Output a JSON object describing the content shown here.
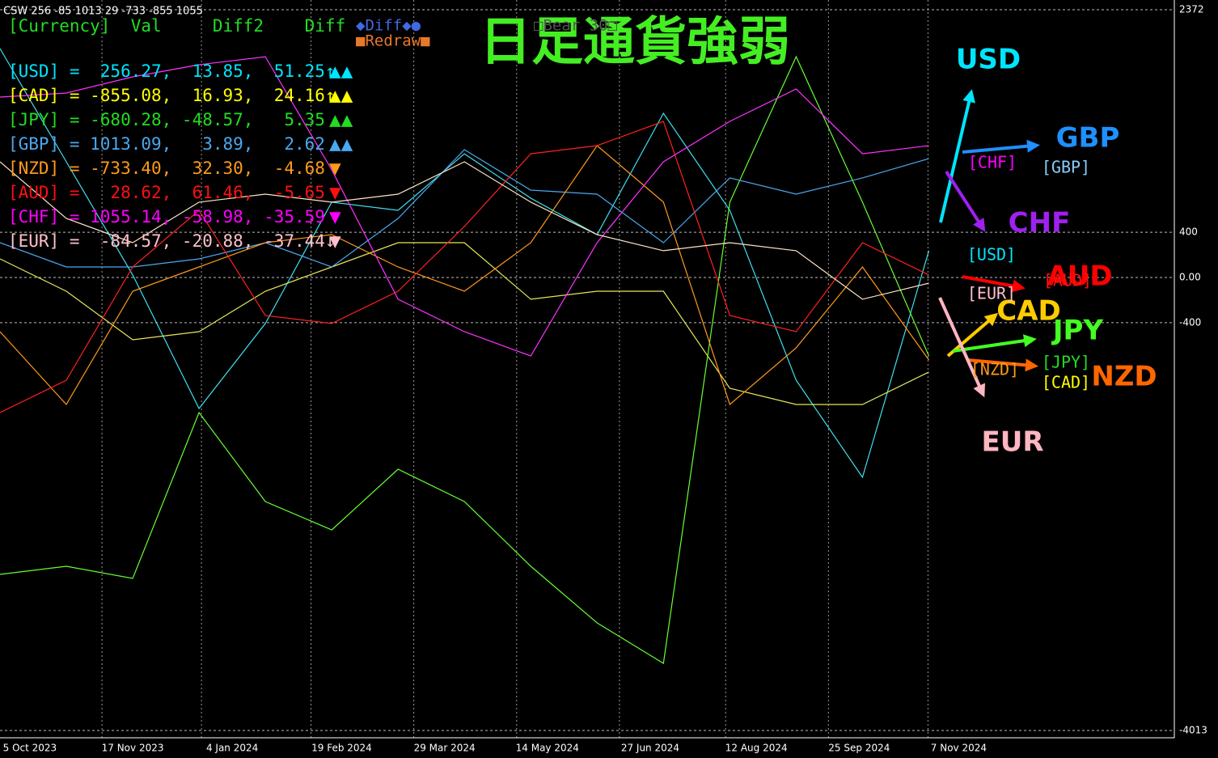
{
  "chart_data": {
    "type": "line",
    "caption": "CSW 256 -85 1013 29 -733 -855 1055",
    "title": "日足通貨強弱",
    "x": [
      0,
      20,
      40,
      60,
      80,
      100,
      120,
      140,
      160,
      180,
      200,
      220,
      240,
      260,
      280
    ],
    "xlim": [
      0,
      354
    ],
    "xticks": [
      {
        "value": 9,
        "label": "5 Oct 2023"
      },
      {
        "value": 40,
        "label": "17 Nov 2023"
      },
      {
        "value": 70,
        "label": "4 Jan 2024"
      },
      {
        "value": 103,
        "label": "19 Feb 2024"
      },
      {
        "value": 134,
        "label": "29 Mar 2024"
      },
      {
        "value": 165,
        "label": "14 May 2024"
      },
      {
        "value": 196,
        "label": "27 Jun 2024"
      },
      {
        "value": 228,
        "label": "12 Aug 2024"
      },
      {
        "value": 259,
        "label": "25 Sep 2024"
      },
      {
        "value": 289,
        "label": "7 Nov 2024"
      }
    ],
    "ylim": [
      -4013,
      2372
    ],
    "yticks": [
      -4013,
      -400,
      {
        "value": 0,
        "label": "0.00"
      },
      400,
      2372
    ],
    "grid": true,
    "series": [
      {
        "name": "USD",
        "color": "#3fe0f0",
        "values": [
          2028,
          1025,
          22,
          -1161,
          -408,
          667,
          595,
          1096,
          702,
          380,
          1455,
          595,
          -910,
          -1770,
          237
        ]
      },
      {
        "name": "CAD",
        "color": "#e6e65a",
        "values": [
          165,
          -122,
          -552,
          -480,
          -122,
          93,
          308,
          308,
          -193,
          -122,
          -122,
          -982,
          -1125,
          -1125,
          -838
        ]
      },
      {
        "name": "JPY",
        "color": "#66ff33",
        "values": [
          -2630,
          -2558,
          -2666,
          -1197,
          -1985,
          -2236,
          -1698,
          -1985,
          -2558,
          -3060,
          -3418,
          667,
          1956,
          667,
          -695
        ]
      },
      {
        "name": "GBP",
        "color": "#4aa8f0",
        "values": [
          308,
          93,
          93,
          165,
          308,
          93,
          523,
          1132,
          774,
          738,
          308,
          882,
          738,
          882,
          1053
        ]
      },
      {
        "name": "NZD",
        "color": "#ff9a1a",
        "values": [
          -480,
          -1125,
          -122,
          93,
          308,
          380,
          93,
          -122,
          308,
          1168,
          667,
          -1125,
          -623,
          93,
          -731
        ]
      },
      {
        "name": "AUD",
        "color": "#ff2020",
        "values": [
          -1197,
          -910,
          93,
          595,
          -337,
          -408,
          -122,
          452,
          1096,
          1168,
          1383,
          -337,
          -480,
          308,
          22
        ]
      },
      {
        "name": "CHF",
        "color": "#ff33ff",
        "values": [
          1598,
          1634,
          1777,
          1885,
          1956,
          953,
          -193,
          -480,
          -695,
          308,
          1025,
          1383,
          1670,
          1096,
          1168
        ]
      },
      {
        "name": "EUR",
        "color": "#ffe4c4",
        "values": [
          1025,
          523,
          308,
          667,
          738,
          667,
          738,
          1025,
          667,
          380,
          237,
          308,
          237,
          -193,
          -50
        ]
      }
    ],
    "panel": {
      "header": "[Currency]  Val     Diff2    Diff",
      "header_color": "#22dd22",
      "buttons": [
        {
          "text": "◆Diff◆●",
          "color": "#4169e1"
        },
        {
          "text": "■Redraw■",
          "color": "#e8782a"
        },
        {
          "text": "□Bear 30□",
          "color": "#555555"
        }
      ],
      "rows": [
        {
          "text": "[USD] =  256.27,  13.85,  51.25↑",
          "marks": "▲▲",
          "color": "#00e5ff"
        },
        {
          "text": "[CAD] = -855.08,  16.93,  24.16↑",
          "marks": "▲▲",
          "color": "#ffff00"
        },
        {
          "text": "[JPY] = -680.28, -48.57,   5.35",
          "marks": "▲▲",
          "color": "#22dd22"
        },
        {
          "text": "[GBP] = 1013.09,   3.89,   2.62",
          "marks": "▲▲",
          "color": "#4aa8f0"
        },
        {
          "text": "[NZD] = -733.40,  32.30,  -4.68",
          "marks": "▼",
          "color": "#ff9a1a"
        },
        {
          "text": "[AUD] =   28.62,  61.46,  -5.65",
          "marks": "▼",
          "color": "#ff1010"
        },
        {
          "text": "[CHF] = 1055.14, -58.98, -35.59",
          "marks": "▼",
          "color": "#ff00ff"
        },
        {
          "text": "[EUR] =  -84.57, -20.88, -37.44↓",
          "marks": "▼",
          "color": "#ffc0cb"
        }
      ]
    },
    "strength_labels": [
      {
        "text": "USD",
        "color": "#00e5ff"
      },
      {
        "text": "GBP",
        "color": "#1e90ff"
      },
      {
        "text": "CHF",
        "color": "#a020f0"
      },
      {
        "text": "AUD",
        "color": "#ff0000"
      },
      {
        "text": "CAD",
        "color": "#ffcc00"
      },
      {
        "text": "JPY",
        "color": "#44ff22"
      },
      {
        "text": "NZD",
        "color": "#ff6600"
      },
      {
        "text": "EUR",
        "color": "#ffb6c1"
      }
    ],
    "bracket_labels": [
      {
        "text": "[CHF]",
        "color": "#ff00ff"
      },
      {
        "text": "[GBP]",
        "color": "#87cefa"
      },
      {
        "text": "[USD]",
        "color": "#00e5ff"
      },
      {
        "text": "[AUD]",
        "color": "#ff1010"
      },
      {
        "text": "[EUR]",
        "color": "#ffc0cb"
      },
      {
        "text": "[NZD]",
        "color": "#ff9a1a"
      },
      {
        "text": "[JPY]",
        "color": "#22dd22"
      },
      {
        "text": "[CAD]",
        "color": "#ffff00"
      }
    ]
  }
}
